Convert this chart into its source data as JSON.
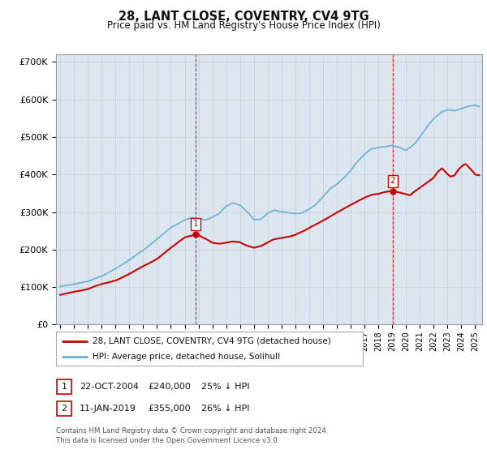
{
  "title": "28, LANT CLOSE, COVENTRY, CV4 9TG",
  "subtitle": "Price paid vs. HM Land Registry's House Price Index (HPI)",
  "ylim": [
    0,
    720000
  ],
  "yticks": [
    0,
    100000,
    200000,
    300000,
    400000,
    500000,
    600000,
    700000
  ],
  "ytick_labels": [
    "£0",
    "£100K",
    "£200K",
    "£300K",
    "£400K",
    "£500K",
    "£600K",
    "£700K"
  ],
  "xlim_start": 1994.7,
  "xlim_end": 2025.5,
  "grid_color": "#cccccc",
  "bg_color": "#dce6f1",
  "sale1_x": 2004.81,
  "sale1_y": 240000,
  "sale2_x": 2019.03,
  "sale2_y": 355000,
  "legend_line1": "28, LANT CLOSE, COVENTRY, CV4 9TG (detached house)",
  "legend_line2": "HPI: Average price, detached house, Solihull",
  "table_row1": [
    "1",
    "22-OCT-2004",
    "£240,000",
    "25% ↓ HPI"
  ],
  "table_row2": [
    "2",
    "11-JAN-2019",
    "£355,000",
    "26% ↓ HPI"
  ],
  "footer": "Contains HM Land Registry data © Crown copyright and database right 2024.\nThis data is licensed under the Open Government Licence v3.0.",
  "hpi_color": "#6baed6",
  "price_color": "#cc0000",
  "vline_color": "#cc0000",
  "hpi_points": [
    [
      1995.0,
      102000
    ],
    [
      1996.0,
      108000
    ],
    [
      1997.0,
      116000
    ],
    [
      1998.0,
      128000
    ],
    [
      1999.0,
      148000
    ],
    [
      2000.0,
      172000
    ],
    [
      2001.0,
      198000
    ],
    [
      2002.0,
      228000
    ],
    [
      2003.0,
      258000
    ],
    [
      2004.0,
      278000
    ],
    [
      2004.5,
      285000
    ],
    [
      2005.0,
      282000
    ],
    [
      2005.5,
      278000
    ],
    [
      2006.0,
      285000
    ],
    [
      2006.5,
      295000
    ],
    [
      2007.0,
      315000
    ],
    [
      2007.5,
      325000
    ],
    [
      2008.0,
      318000
    ],
    [
      2008.5,
      300000
    ],
    [
      2009.0,
      280000
    ],
    [
      2009.5,
      282000
    ],
    [
      2010.0,
      298000
    ],
    [
      2010.5,
      305000
    ],
    [
      2011.0,
      300000
    ],
    [
      2011.5,
      298000
    ],
    [
      2012.0,
      295000
    ],
    [
      2012.5,
      298000
    ],
    [
      2013.0,
      308000
    ],
    [
      2013.5,
      320000
    ],
    [
      2014.0,
      340000
    ],
    [
      2014.5,
      360000
    ],
    [
      2015.0,
      375000
    ],
    [
      2015.5,
      392000
    ],
    [
      2016.0,
      412000
    ],
    [
      2016.5,
      435000
    ],
    [
      2017.0,
      455000
    ],
    [
      2017.5,
      468000
    ],
    [
      2018.0,
      472000
    ],
    [
      2018.5,
      475000
    ],
    [
      2019.0,
      478000
    ],
    [
      2019.5,
      472000
    ],
    [
      2020.0,
      465000
    ],
    [
      2020.5,
      478000
    ],
    [
      2021.0,
      498000
    ],
    [
      2021.5,
      525000
    ],
    [
      2022.0,
      548000
    ],
    [
      2022.5,
      565000
    ],
    [
      2023.0,
      572000
    ],
    [
      2023.5,
      570000
    ],
    [
      2024.0,
      575000
    ],
    [
      2024.5,
      582000
    ],
    [
      2025.0,
      585000
    ],
    [
      2025.3,
      582000
    ]
  ],
  "price_points": [
    [
      1995.0,
      80000
    ],
    [
      1996.0,
      88000
    ],
    [
      1997.0,
      95000
    ],
    [
      1998.0,
      108000
    ],
    [
      1999.0,
      118000
    ],
    [
      2000.0,
      135000
    ],
    [
      2001.0,
      155000
    ],
    [
      2002.0,
      175000
    ],
    [
      2003.0,
      205000
    ],
    [
      2004.0,
      232000
    ],
    [
      2004.81,
      240000
    ],
    [
      2005.0,
      238000
    ],
    [
      2005.5,
      228000
    ],
    [
      2006.0,
      218000
    ],
    [
      2006.5,
      215000
    ],
    [
      2007.0,
      218000
    ],
    [
      2007.5,
      222000
    ],
    [
      2008.0,
      220000
    ],
    [
      2008.5,
      210000
    ],
    [
      2009.0,
      205000
    ],
    [
      2009.5,
      210000
    ],
    [
      2010.0,
      220000
    ],
    [
      2010.5,
      228000
    ],
    [
      2011.0,
      232000
    ],
    [
      2011.5,
      235000
    ],
    [
      2012.0,
      240000
    ],
    [
      2012.5,
      248000
    ],
    [
      2013.0,
      258000
    ],
    [
      2013.5,
      268000
    ],
    [
      2014.0,
      278000
    ],
    [
      2014.5,
      288000
    ],
    [
      2015.0,
      298000
    ],
    [
      2015.5,
      308000
    ],
    [
      2016.0,
      318000
    ],
    [
      2016.5,
      328000
    ],
    [
      2017.0,
      338000
    ],
    [
      2017.5,
      345000
    ],
    [
      2018.0,
      348000
    ],
    [
      2018.5,
      352000
    ],
    [
      2019.0,
      355000
    ],
    [
      2019.03,
      355000
    ],
    [
      2019.5,
      352000
    ],
    [
      2020.0,
      348000
    ],
    [
      2020.3,
      345000
    ],
    [
      2020.5,
      352000
    ],
    [
      2021.0,
      365000
    ],
    [
      2021.5,
      378000
    ],
    [
      2022.0,
      392000
    ],
    [
      2022.3,
      408000
    ],
    [
      2022.6,
      418000
    ],
    [
      2022.9,
      405000
    ],
    [
      2023.2,
      395000
    ],
    [
      2023.5,
      398000
    ],
    [
      2023.8,
      415000
    ],
    [
      2024.0,
      422000
    ],
    [
      2024.3,
      430000
    ],
    [
      2024.6,
      418000
    ],
    [
      2024.9,
      405000
    ],
    [
      2025.0,
      400000
    ],
    [
      2025.3,
      398000
    ]
  ]
}
